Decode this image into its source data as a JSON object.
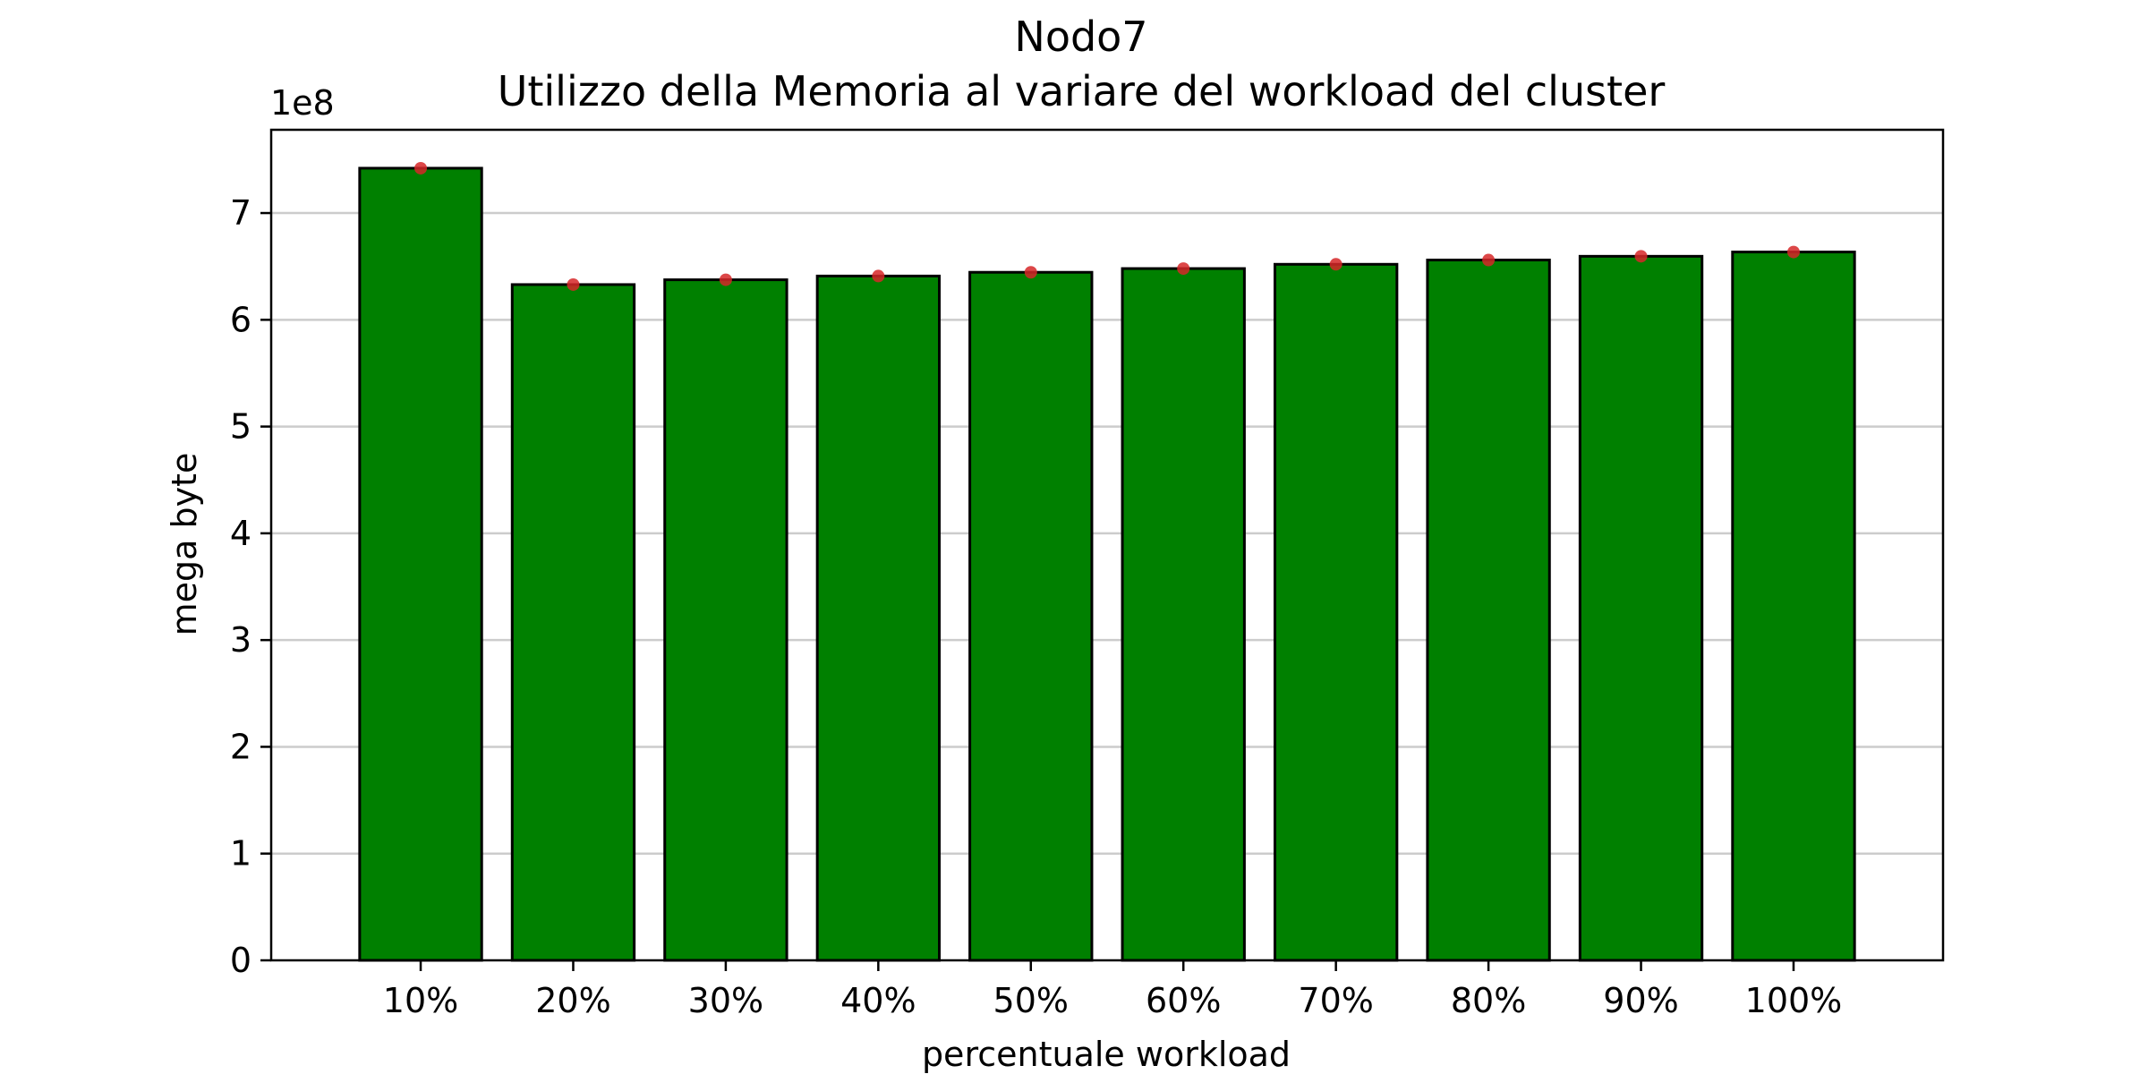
{
  "chart_data": {
    "type": "bar",
    "title": "Nodo7",
    "subtitle": "Utilizzo della Memoria al variare del workload del cluster",
    "xlabel": "percentuale workload",
    "ylabel": "mega byte",
    "offset_label": "1e8",
    "categories": [
      "10%",
      "20%",
      "30%",
      "40%",
      "50%",
      "60%",
      "70%",
      "80%",
      "90%",
      "100%"
    ],
    "values": [
      742000000,
      633000000,
      637500000,
      641000000,
      644500000,
      648000000,
      652000000,
      656000000,
      659500000,
      663500000
    ],
    "markers": [
      742000000,
      633000000,
      637500000,
      641000000,
      644500000,
      648000000,
      652000000,
      656000000,
      659500000,
      663500000
    ],
    "ylim": [
      0,
      778000000
    ],
    "yticks": [
      0,
      100000000,
      200000000,
      300000000,
      400000000,
      500000000,
      600000000,
      700000000
    ],
    "ytick_labels": [
      "0",
      "1",
      "2",
      "3",
      "4",
      "5",
      "6",
      "7"
    ],
    "grid": "horizontal",
    "colors": {
      "bar_fill": "#008000",
      "bar_edge": "#000000",
      "marker": "#d62728",
      "grid": "#cccccc"
    }
  }
}
